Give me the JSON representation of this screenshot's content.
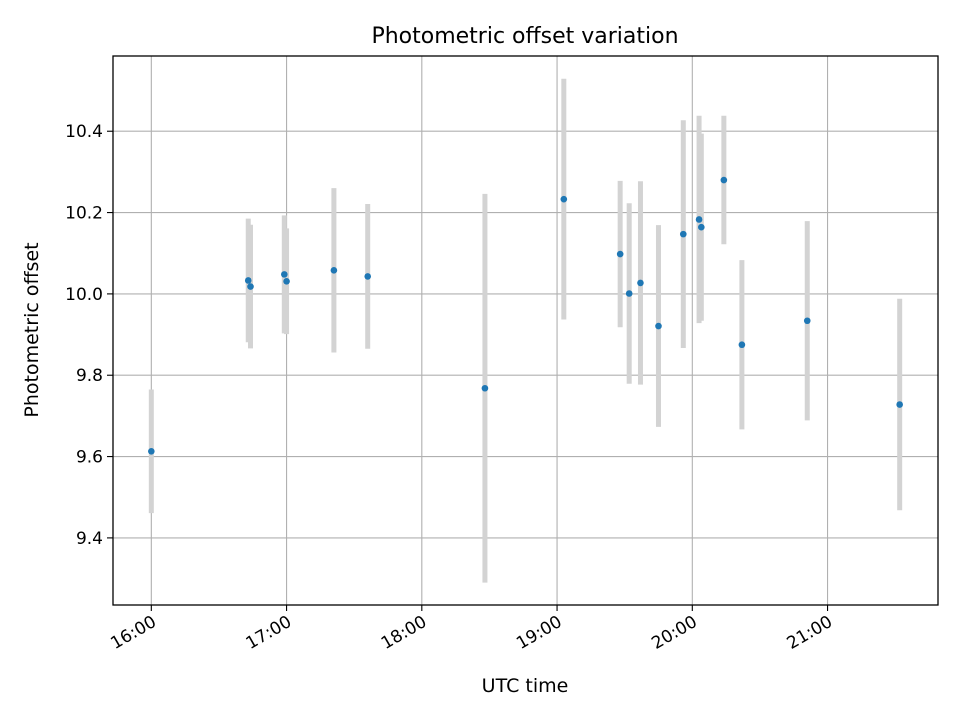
{
  "chart_data": {
    "type": "scatter",
    "title": "Photometric offset variation",
    "xlabel": "UTC time",
    "ylabel": "Photometric offset",
    "x_type": "time",
    "xlim": [
      "15:43",
      "21:49"
    ],
    "ylim": [
      9.235,
      10.585
    ],
    "x_ticks": [
      "16:00",
      "17:00",
      "18:00",
      "19:00",
      "20:00",
      "21:00"
    ],
    "y_ticks": [
      9.4,
      9.6,
      9.8,
      10.0,
      10.2,
      10.4
    ],
    "y_tick_labels": [
      "9.4",
      "9.6",
      "9.8",
      "10.0",
      "10.2",
      "10.4"
    ],
    "grid": true,
    "legend": "none",
    "colors": {
      "point": "#1f77b4",
      "errorbar": "#d3d3d3",
      "grid": "#b0b0b0"
    },
    "series": [
      {
        "points": [
          {
            "x": "16:00",
            "y": 9.613,
            "yerr": 0.152
          },
          {
            "x": "16:43",
            "y": 10.033,
            "yerr": 0.152
          },
          {
            "x": "16:44",
            "y": 10.018,
            "yerr": 0.152
          },
          {
            "x": "16:59",
            "y": 10.048,
            "yerr": 0.145
          },
          {
            "x": "17:00",
            "y": 10.031,
            "yerr": 0.13
          },
          {
            "x": "17:21",
            "y": 10.058,
            "yerr": 0.202
          },
          {
            "x": "17:36",
            "y": 10.043,
            "yerr": 0.178
          },
          {
            "x": "18:28",
            "y": 9.768,
            "yerr": 0.478
          },
          {
            "x": "19:03",
            "y": 10.233,
            "yerr": 0.296
          },
          {
            "x": "19:28",
            "y": 10.098,
            "yerr": 0.18
          },
          {
            "x": "19:32",
            "y": 10.001,
            "yerr": 0.222
          },
          {
            "x": "19:37",
            "y": 10.027,
            "yerr": 0.25
          },
          {
            "x": "19:45",
            "y": 9.921,
            "yerr": 0.248
          },
          {
            "x": "19:56",
            "y": 10.147,
            "yerr": 0.28
          },
          {
            "x": "20:03",
            "y": 10.183,
            "yerr": 0.255
          },
          {
            "x": "20:04",
            "y": 10.164,
            "yerr": 0.23
          },
          {
            "x": "20:14",
            "y": 10.28,
            "yerr": 0.158
          },
          {
            "x": "20:22",
            "y": 9.875,
            "yerr": 0.208
          },
          {
            "x": "20:51",
            "y": 9.934,
            "yerr": 0.245
          },
          {
            "x": "21:32",
            "y": 9.728,
            "yerr": 0.26
          }
        ]
      }
    ]
  }
}
